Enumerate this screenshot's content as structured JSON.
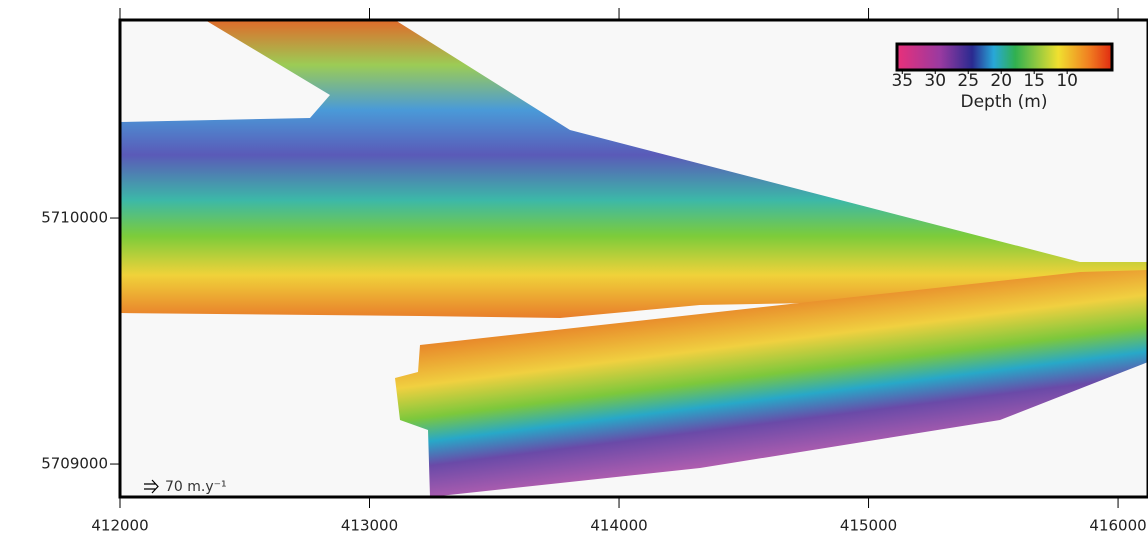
{
  "map": {
    "xlim": [
      412000,
      416120
    ],
    "ylim": [
      5708866,
      5710805
    ],
    "xticks": [
      412000,
      413000,
      414000,
      415000,
      416000
    ],
    "yticks": [
      5709000,
      5710000
    ],
    "colorbar": {
      "title": "Depth (m)",
      "lim": [
        35.8,
        3.2
      ],
      "ticks": [
        35,
        30,
        25,
        20,
        15,
        10
      ]
    },
    "scale_label": "70 m.y⁻¹"
  }
}
